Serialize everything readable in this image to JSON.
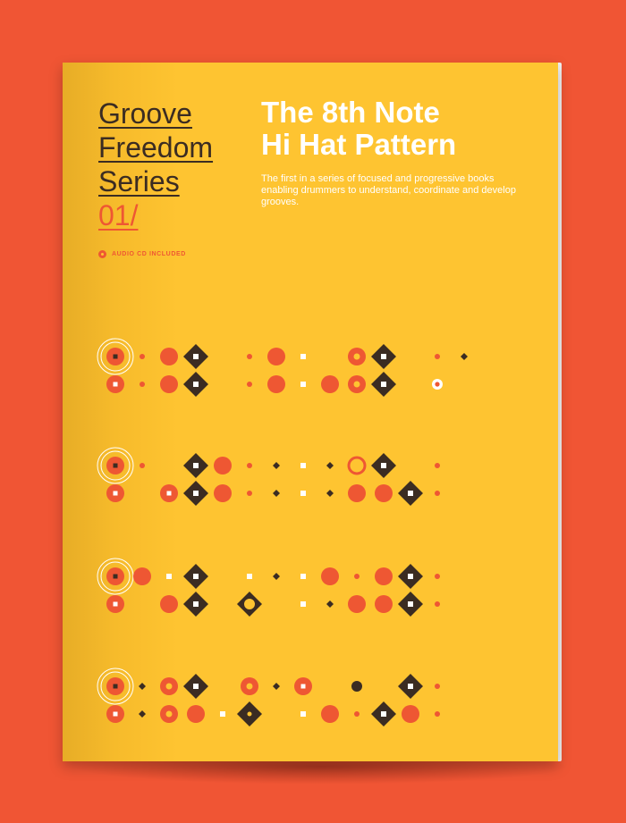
{
  "cover": {
    "series_title": [
      "Groove",
      "Freedom",
      "Series"
    ],
    "series_number": "01/",
    "audio_label": "AUDIO CD INCLUDED",
    "main_title": [
      "The 8th Note",
      "Hi Hat Pattern"
    ],
    "subtitle": "The first in a series of focused and progressive books enabling drummers to understand, coordinate and develop grooves."
  },
  "colors": {
    "background": "#F05534",
    "cover": "#FEC431",
    "orange": "#EE5733",
    "brown": "#3B2C22",
    "white": "#FFFFFF"
  },
  "pattern": {
    "columns": 15,
    "rows": [
      {
        "top": [
          "target",
          "dot",
          "circle",
          "diamond",
          "empty",
          "dot",
          "circle",
          "square",
          "empty",
          "ringdot",
          "diamond",
          "empty",
          "dot",
          "bdot",
          "empty"
        ],
        "bottom": [
          "bcircle",
          "dot",
          "circle",
          "diamond",
          "empty",
          "dot",
          "circle",
          "square",
          "circle",
          "ringdot",
          "diamond",
          "empty",
          "whitering",
          "empty",
          "empty"
        ]
      },
      {
        "top": [
          "target",
          "dot",
          "empty",
          "diamond",
          "circle",
          "dot",
          "bdot",
          "square",
          "bdot",
          "ring",
          "diamond",
          "empty",
          "dot",
          "empty",
          "empty"
        ],
        "bottom": [
          "bcircle",
          "empty",
          "bcircle",
          "diamond",
          "circle",
          "dot",
          "bdot",
          "square",
          "bdot",
          "circle",
          "circle",
          "diamond",
          "dot",
          "empty",
          "empty"
        ]
      },
      {
        "top": [
          "target",
          "circle",
          "square",
          "diamond",
          "empty",
          "square",
          "bdot",
          "square",
          "circle",
          "dot",
          "circle",
          "diamond",
          "dot",
          "empty",
          "empty"
        ],
        "bottom": [
          "bcircle",
          "empty",
          "circle",
          "diamond",
          "empty",
          "ringdiamond",
          "empty",
          "square",
          "bdot",
          "circle",
          "circle",
          "diamond",
          "dot",
          "empty",
          "empty"
        ]
      },
      {
        "top": [
          "target",
          "bdot",
          "ringdot",
          "diamond",
          "empty",
          "ringdot",
          "bdot",
          "bcircle",
          "empty",
          "brownball",
          "empty",
          "diamond",
          "dot",
          "empty",
          "empty"
        ],
        "bottom": [
          "bcircle",
          "bdot",
          "ringdot",
          "circle",
          "square",
          "dotdiamond",
          "empty",
          "square",
          "circle",
          "dot",
          "diamond",
          "circle",
          "dot",
          "empty",
          "empty"
        ]
      }
    ]
  }
}
